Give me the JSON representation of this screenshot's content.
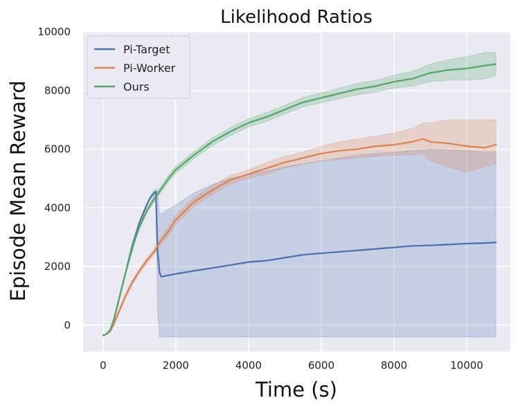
{
  "chart_data": {
    "type": "line",
    "title": "Likelihood Ratios",
    "xlabel": "Time (s)",
    "ylabel": "Episode Mean Reward",
    "xlim": [
      -550,
      11200
    ],
    "ylim": [
      -900,
      10000
    ],
    "xticks": [
      0,
      2000,
      4000,
      6000,
      8000,
      10000
    ],
    "yticks": [
      0,
      2000,
      4000,
      6000,
      8000,
      10000
    ],
    "xtick_labels": [
      "0",
      "2000",
      "4000",
      "6000",
      "8000",
      "10000"
    ],
    "ytick_labels": [
      "0",
      "2000",
      "4000",
      "6000",
      "8000",
      "10000"
    ],
    "grid": true,
    "legend_position": "top-left",
    "series": [
      {
        "name": "Pi-Target",
        "color": "#4c72b0",
        "x": [
          0,
          100,
          200,
          300,
          400,
          500,
          600,
          700,
          800,
          900,
          1000,
          1100,
          1200,
          1300,
          1400,
          1450,
          1500,
          1550,
          1600,
          1800,
          2000,
          2500,
          3000,
          3500,
          4000,
          4500,
          5000,
          5500,
          6000,
          6500,
          7000,
          7500,
          8000,
          8500,
          9000,
          9500,
          10000,
          10500,
          10800
        ],
        "y": [
          -350,
          -300,
          -150,
          200,
          700,
          1200,
          1700,
          2200,
          2700,
          3100,
          3500,
          3800,
          4100,
          4350,
          4500,
          4550,
          2500,
          1800,
          1650,
          1700,
          1750,
          1850,
          1950,
          2050,
          2150,
          2200,
          2300,
          2400,
          2450,
          2500,
          2550,
          2600,
          2650,
          2700,
          2720,
          2750,
          2780,
          2800,
          2820
        ],
        "lower": [
          -350,
          -300,
          -160,
          180,
          660,
          1160,
          1650,
          2150,
          2650,
          3050,
          3450,
          3750,
          4050,
          4300,
          4450,
          4480,
          500,
          -400,
          -400,
          -400,
          -400,
          -400,
          -400,
          -400,
          -400,
          -400,
          -400,
          -400,
          -400,
          -400,
          -400,
          -400,
          -400,
          -400,
          -400,
          -400,
          -400,
          -400,
          -400
        ],
        "upper": [
          -340,
          -280,
          -130,
          220,
          740,
          1250,
          1750,
          2250,
          2750,
          3150,
          3550,
          3850,
          4150,
          4400,
          4600,
          4650,
          4500,
          3800,
          3800,
          3950,
          4100,
          4500,
          4800,
          5000,
          5150,
          5250,
          5400,
          5500,
          5600,
          5700,
          5800,
          5850,
          5900,
          5950,
          6000,
          5980,
          5950,
          5900,
          5900
        ]
      },
      {
        "name": "Pi-Worker",
        "color": "#dd8452",
        "x": [
          0,
          100,
          200,
          300,
          400,
          500,
          600,
          700,
          800,
          900,
          1000,
          1200,
          1400,
          1600,
          1800,
          2000,
          2500,
          3000,
          3500,
          4000,
          4500,
          5000,
          5500,
          6000,
          6500,
          7000,
          7500,
          8000,
          8500,
          8800,
          9000,
          9500,
          10000,
          10500,
          10800
        ],
        "y": [
          -350,
          -300,
          -200,
          50,
          350,
          650,
          950,
          1200,
          1450,
          1650,
          1850,
          2200,
          2500,
          2900,
          3200,
          3600,
          4200,
          4600,
          4950,
          5150,
          5350,
          5550,
          5700,
          5850,
          5950,
          6000,
          6100,
          6150,
          6250,
          6350,
          6250,
          6200,
          6100,
          6050,
          6150
        ],
        "lower": [
          -360,
          -320,
          -230,
          0,
          280,
          580,
          870,
          1120,
          1370,
          1570,
          1770,
          2100,
          2400,
          2800,
          3050,
          3450,
          4050,
          4450,
          4800,
          5000,
          5150,
          5350,
          5500,
          5600,
          5650,
          5700,
          5750,
          5800,
          5800,
          5850,
          5600,
          5400,
          5200,
          5400,
          5500
        ],
        "upper": [
          -340,
          -280,
          -170,
          100,
          420,
          720,
          1030,
          1280,
          1530,
          1730,
          1930,
          2300,
          2600,
          3000,
          3350,
          3750,
          4350,
          4750,
          5100,
          5300,
          5550,
          5750,
          5900,
          6100,
          6250,
          6350,
          6450,
          6550,
          6700,
          6900,
          6900,
          7000,
          7000,
          7000,
          7000
        ]
      },
      {
        "name": "Ours",
        "color": "#55a868",
        "x": [
          0,
          100,
          200,
          300,
          400,
          500,
          600,
          700,
          800,
          900,
          1000,
          1200,
          1400,
          1600,
          1800,
          2000,
          2500,
          3000,
          3500,
          4000,
          4500,
          5000,
          5500,
          6000,
          6500,
          7000,
          7500,
          8000,
          8500,
          9000,
          9500,
          10000,
          10500,
          10800
        ],
        "y": [
          -350,
          -300,
          -150,
          200,
          700,
          1200,
          1700,
          2150,
          2600,
          3000,
          3350,
          3900,
          4300,
          4650,
          5000,
          5300,
          5800,
          6250,
          6600,
          6900,
          7100,
          7350,
          7600,
          7750,
          7900,
          8050,
          8150,
          8300,
          8400,
          8600,
          8700,
          8750,
          8850,
          8900
        ],
        "lower": [
          -360,
          -320,
          -180,
          150,
          640,
          1130,
          1630,
          2080,
          2530,
          2930,
          3280,
          3820,
          4200,
          4550,
          4880,
          5180,
          5680,
          6120,
          6460,
          6760,
          6950,
          7200,
          7440,
          7580,
          7720,
          7850,
          7950,
          8080,
          8150,
          8300,
          8350,
          8350,
          8400,
          8500
        ],
        "upper": [
          -340,
          -280,
          -120,
          250,
          760,
          1270,
          1770,
          2220,
          2670,
          3070,
          3420,
          3980,
          4400,
          4750,
          5120,
          5420,
          5920,
          6380,
          6740,
          7040,
          7250,
          7500,
          7760,
          7920,
          8080,
          8250,
          8350,
          8520,
          8650,
          8900,
          9050,
          9150,
          9300,
          9300
        ]
      }
    ]
  }
}
